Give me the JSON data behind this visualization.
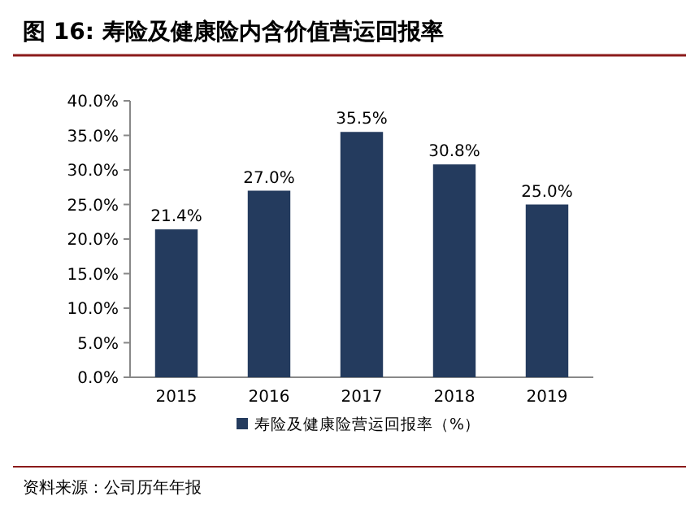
{
  "chart_data": {
    "type": "bar",
    "title": "图 16: 寿险及健康险内含价值营运回报率",
    "categories": [
      "2015",
      "2016",
      "2017",
      "2018",
      "2019"
    ],
    "series": [
      {
        "name": "寿险及健康险营运回报率（%）",
        "color": "#243b5e",
        "values": [
          21.4,
          27.0,
          35.5,
          30.8,
          25.0
        ],
        "value_labels": [
          "21.4%",
          "27.0%",
          "35.5%",
          "30.8%",
          "25.0%"
        ]
      }
    ],
    "ylim": [
      0,
      40
    ],
    "yticks": [
      {
        "value": 0,
        "label": "0.0%"
      },
      {
        "value": 5,
        "label": "5.0%"
      },
      {
        "value": 10,
        "label": "10.0%"
      },
      {
        "value": 15,
        "label": "15.0%"
      },
      {
        "value": 20,
        "label": "20.0%"
      },
      {
        "value": 25,
        "label": "25.0%"
      },
      {
        "value": 30,
        "label": "30.0%"
      },
      {
        "value": 35,
        "label": "35.0%"
      },
      {
        "value": 40,
        "label": "40.0%"
      }
    ],
    "legend": "bottom",
    "grid": false,
    "annotations": [
      "资料来源：公司历年年报"
    ]
  }
}
